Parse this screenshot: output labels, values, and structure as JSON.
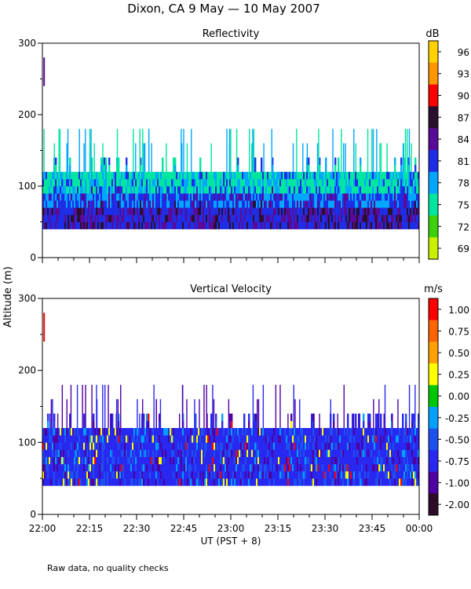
{
  "title": "Dixon, CA  9 May — 10 May 2007",
  "y_axis_label": "Altitude (m)",
  "x_axis_label": "UT  (PST + 8)",
  "footnote": "Raw data, no quality checks",
  "chart_data": [
    {
      "type": "heatmap",
      "title": "Reflectivity",
      "x_ticks": [
        "22:00",
        "22:15",
        "22:30",
        "22:45",
        "23:00",
        "23:15",
        "23:30",
        "23:45",
        "00:00"
      ],
      "x_range_minutes": [
        0,
        120
      ],
      "ylim": [
        0,
        300
      ],
      "y_ticks": [
        0,
        100,
        200,
        300
      ],
      "echo_bottom_m": 40,
      "main_echo_top_m": 120,
      "spike_tops_m": [
        160,
        180
      ],
      "colorbar": {
        "unit": "dB",
        "labels": [
          "96",
          "93",
          "90",
          "87",
          "84",
          "81",
          "78",
          "75",
          "72",
          "69"
        ],
        "colors": [
          "#ffd200",
          "#ff9600",
          "#ff0000",
          "#2a0f2e",
          "#5a0a96",
          "#1e2ee6",
          "#00a6ff",
          "#00e6a0",
          "#3cd20a",
          "#c8f000"
        ]
      }
    },
    {
      "type": "heatmap",
      "title": "Vertical Velocity",
      "x_ticks": [
        "22:00",
        "22:15",
        "22:30",
        "22:45",
        "23:00",
        "23:15",
        "23:30",
        "23:45",
        "00:00"
      ],
      "x_range_minutes": [
        0,
        120
      ],
      "ylim": [
        0,
        300
      ],
      "y_ticks": [
        0,
        100,
        200,
        300
      ],
      "echo_bottom_m": 40,
      "main_echo_top_m": 120,
      "spike_tops_m": [
        140,
        160,
        180
      ],
      "colorbar": {
        "unit": "m/s",
        "labels": [
          "1.00",
          "0.75",
          "0.50",
          "0.25",
          "0.00",
          "-0.25",
          "-0.50",
          "-0.75",
          "-1.00",
          "-2.00"
        ],
        "colors": [
          "#ff0000",
          "#ff6400",
          "#ffa000",
          "#ffff00",
          "#00c800",
          "#00a0ff",
          "#1e50f0",
          "#2828f0",
          "#5000a0",
          "#2d0a28"
        ]
      }
    }
  ]
}
